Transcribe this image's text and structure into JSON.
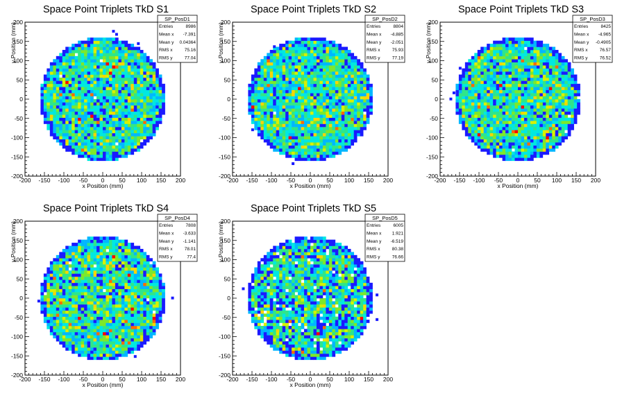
{
  "chart_data": [
    {
      "type": "heatmap",
      "title": "Space Point Triplets TkD S1",
      "xlabel": "x Position (mm)",
      "ylabel": "y Position (mm)",
      "xlim": [
        -200,
        200
      ],
      "ylim": [
        -200,
        200
      ],
      "x_ticks": [
        "-200",
        "-150",
        "-100",
        "-50",
        "0",
        "50",
        "100",
        "150",
        "200"
      ],
      "y_ticks": [
        "-200",
        "-150",
        "-100",
        "-50",
        "0",
        "50",
        "100",
        "150",
        "200"
      ],
      "stats": {
        "name": "SP_PosD1",
        "rows": [
          {
            "label": "Entries",
            "value": "8986"
          },
          {
            "label": "Mean x",
            "value": "-7.391"
          },
          {
            "label": "Mean y",
            "value": "0.04364"
          },
          {
            "label": "RMS x",
            "value": "75.16"
          },
          {
            "label": "RMS y",
            "value": "77.04"
          }
        ]
      },
      "distribution": {
        "shape": "disc",
        "radius_mm": 160,
        "bin_width_mm": 8,
        "entries": 8986
      },
      "palette": [
        "#1a1aff",
        "#00b7ff",
        "#00e8e0",
        "#2ee68a",
        "#7de82a",
        "#d8f000",
        "#ffd400",
        "#ff6a00",
        "#ff0000"
      ]
    },
    {
      "type": "heatmap",
      "title": "Space Point Triplets TkD S2",
      "xlabel": "x Position (mm)",
      "ylabel": "y Position (mm)",
      "xlim": [
        -200,
        200
      ],
      "ylim": [
        -200,
        200
      ],
      "x_ticks": [
        "-200",
        "-150",
        "-100",
        "-50",
        "0",
        "50",
        "100",
        "150",
        "200"
      ],
      "y_ticks": [
        "-200",
        "-150",
        "-100",
        "-50",
        "0",
        "50",
        "100",
        "150",
        "200"
      ],
      "stats": {
        "name": "SP_PosD2",
        "rows": [
          {
            "label": "Entries",
            "value": "8804"
          },
          {
            "label": "Mean x",
            "value": "-4.885"
          },
          {
            "label": "Mean y",
            "value": "-2.051"
          },
          {
            "label": "RMS x",
            "value": "75.93"
          },
          {
            "label": "RMS y",
            "value": "77.19"
          }
        ]
      },
      "distribution": {
        "shape": "disc",
        "radius_mm": 160,
        "bin_width_mm": 8,
        "entries": 8804
      },
      "palette": [
        "#1a1aff",
        "#00b7ff",
        "#00e8e0",
        "#2ee68a",
        "#7de82a",
        "#d8f000",
        "#ffd400",
        "#ff6a00",
        "#ff0000"
      ]
    },
    {
      "type": "heatmap",
      "title": "Space Point Triplets TkD S3",
      "xlabel": "x Position (mm)",
      "ylabel": "y Position (mm)",
      "xlim": [
        -200,
        200
      ],
      "ylim": [
        -200,
        200
      ],
      "x_ticks": [
        "-200",
        "-150",
        "-100",
        "-50",
        "0",
        "50",
        "100",
        "150",
        "200"
      ],
      "y_ticks": [
        "-200",
        "-150",
        "-100",
        "-50",
        "0",
        "50",
        "100",
        "150",
        "200"
      ],
      "stats": {
        "name": "SP_PosD3",
        "rows": [
          {
            "label": "Entries",
            "value": "8425"
          },
          {
            "label": "Mean x",
            "value": "-4.965"
          },
          {
            "label": "Mean y",
            "value": "-0.4905"
          },
          {
            "label": "RMS x",
            "value": "76.57"
          },
          {
            "label": "RMS y",
            "value": "76.52"
          }
        ]
      },
      "distribution": {
        "shape": "disc",
        "radius_mm": 160,
        "bin_width_mm": 8,
        "entries": 8425
      },
      "palette": [
        "#1a1aff",
        "#00b7ff",
        "#00e8e0",
        "#2ee68a",
        "#7de82a",
        "#d8f000",
        "#ffd400",
        "#ff6a00",
        "#ff0000"
      ]
    },
    {
      "type": "heatmap",
      "title": "Space Point Triplets TkD S4",
      "xlabel": "x Position (mm)",
      "ylabel": "y Position (mm)",
      "xlim": [
        -200,
        200
      ],
      "ylim": [
        -200,
        200
      ],
      "x_ticks": [
        "-200",
        "-150",
        "-100",
        "-50",
        "0",
        "50",
        "100",
        "150",
        "200"
      ],
      "y_ticks": [
        "-200",
        "-150",
        "-100",
        "-50",
        "0",
        "50",
        "100",
        "150",
        "200"
      ],
      "stats": {
        "name": "SP_PosD4",
        "rows": [
          {
            "label": "Entries",
            "value": "7808"
          },
          {
            "label": "Mean x",
            "value": "-3.633"
          },
          {
            "label": "Mean y",
            "value": "-1.141"
          },
          {
            "label": "RMS x",
            "value": "78.01"
          },
          {
            "label": "RMS y",
            "value": "77.4"
          }
        ]
      },
      "distribution": {
        "shape": "disc",
        "radius_mm": 160,
        "bin_width_mm": 8,
        "entries": 7808
      },
      "palette": [
        "#1a1aff",
        "#00b7ff",
        "#00e8e0",
        "#2ee68a",
        "#7de82a",
        "#d8f000",
        "#ffd400",
        "#ff6a00",
        "#ff0000"
      ]
    },
    {
      "type": "heatmap",
      "title": "Space Point Triplets TkD S5",
      "xlabel": "x Position (mm)",
      "ylabel": "y Position (mm)",
      "xlim": [
        -200,
        200
      ],
      "ylim": [
        -200,
        200
      ],
      "x_ticks": [
        "-200",
        "-150",
        "-100",
        "-50",
        "0",
        "50",
        "100",
        "150",
        "200"
      ],
      "y_ticks": [
        "-200",
        "-150",
        "-100",
        "-50",
        "0",
        "50",
        "100",
        "150",
        "200"
      ],
      "stats": {
        "name": "SP_PosD5",
        "rows": [
          {
            "label": "Entries",
            "value": "6005"
          },
          {
            "label": "Mean x",
            "value": "1.921"
          },
          {
            "label": "Mean y",
            "value": "-6.519"
          },
          {
            "label": "RMS x",
            "value": "80.38"
          },
          {
            "label": "RMS y",
            "value": "76.66"
          }
        ]
      },
      "distribution": {
        "shape": "disc",
        "radius_mm": 160,
        "bin_width_mm": 8,
        "entries": 6005
      },
      "palette": [
        "#1a1aff",
        "#00b7ff",
        "#00e8e0",
        "#2ee68a",
        "#7de82a",
        "#d8f000",
        "#ffd400",
        "#ff6a00",
        "#ff0000"
      ]
    }
  ]
}
